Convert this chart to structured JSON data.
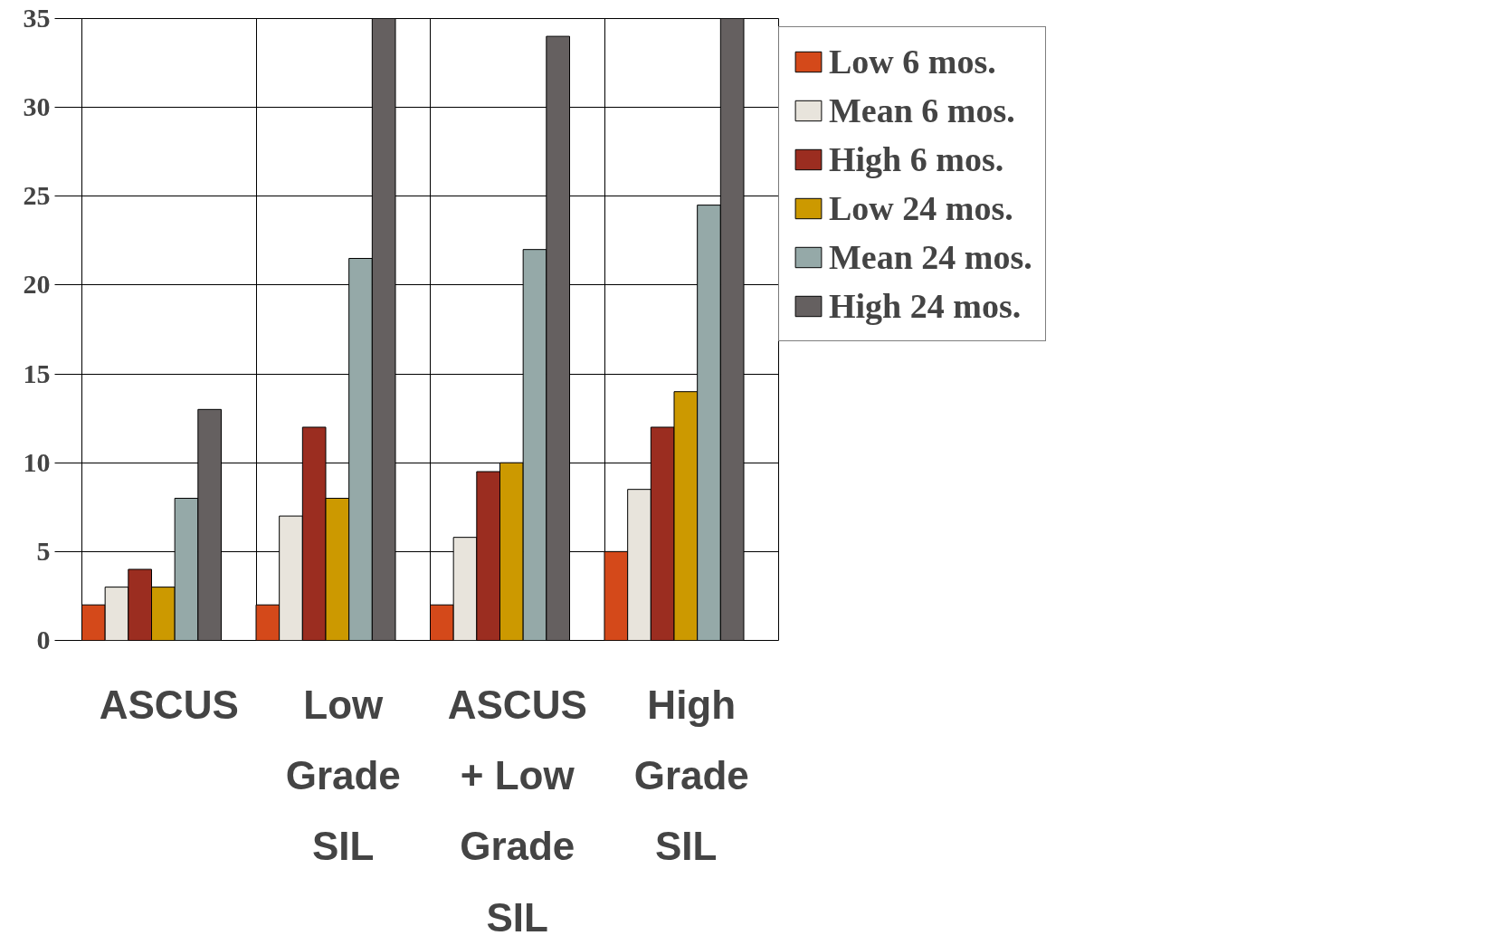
{
  "chart_data": {
    "type": "bar",
    "categories": [
      "ASCUS",
      "Low\nGrade\nSIL",
      "ASCUS\n+ Low\nGrade\nSIL",
      "High\nGrade\n SIL"
    ],
    "series": [
      {
        "name": "Low 6 mos.",
        "color": "#d4491a",
        "values": [
          2,
          2,
          2,
          5
        ]
      },
      {
        "name": "Mean 6 mos.",
        "color": "#e8e4dc",
        "values": [
          3,
          7,
          5.8,
          8.5
        ]
      },
      {
        "name": "High 6 mos.",
        "color": "#9b2d20",
        "values": [
          4,
          12,
          9.5,
          12
        ]
      },
      {
        "name": "Low 24 mos.",
        "color": "#cc9900",
        "values": [
          3,
          8,
          10,
          14
        ]
      },
      {
        "name": "Mean 24 mos.",
        "color": "#95a9a8",
        "values": [
          8,
          21.5,
          22,
          24.5
        ]
      },
      {
        "name": "High 24 mos.",
        "color": "#656060",
        "values": [
          13,
          35,
          34,
          35
        ]
      }
    ],
    "ylim": [
      0,
      35
    ],
    "yticks": [
      0,
      5,
      10,
      15,
      20,
      25,
      30,
      35
    ],
    "grid": true,
    "legend": "right"
  }
}
